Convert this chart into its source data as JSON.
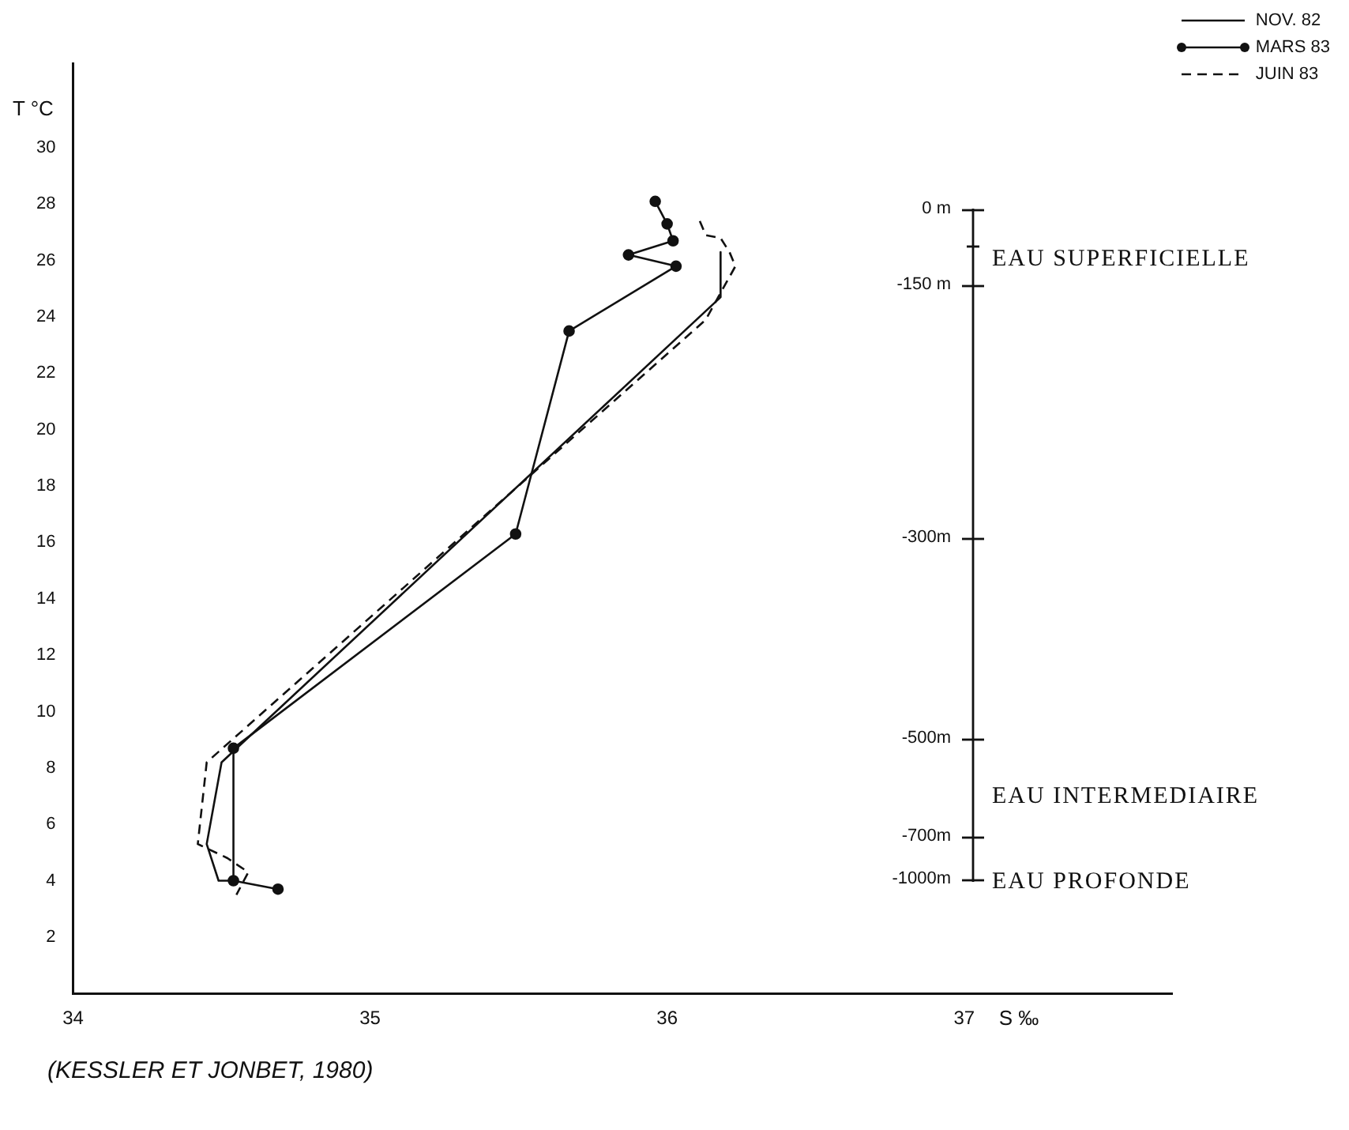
{
  "chart_data": {
    "type": "line",
    "xlabel": "S ‰",
    "ylabel": "T °C",
    "xlim": [
      34,
      37.7
    ],
    "ylim": [
      0,
      33
    ],
    "xticks": [
      34,
      35,
      36,
      37
    ],
    "yticks": [
      2,
      4,
      6,
      8,
      10,
      12,
      14,
      16,
      18,
      20,
      22,
      24,
      26,
      28,
      30
    ],
    "grid": false,
    "legend": "top right",
    "series": [
      {
        "name": "NOV. 82",
        "color": "#111111",
        "line_style": "solid",
        "marker": "none",
        "x": [
          36.18,
          36.18,
          34.5,
          34.45,
          34.49,
          34.55
        ],
        "values": [
          26.3,
          24.7,
          8.2,
          5.3,
          4.0,
          4.0
        ]
      },
      {
        "name": "MARS 83",
        "color": "#111111",
        "line_style": "solid",
        "marker": "circle",
        "x": [
          35.96,
          36.0,
          36.02,
          35.87,
          36.03,
          35.67,
          35.49,
          34.54,
          34.54,
          34.69
        ],
        "values": [
          28.1,
          27.3,
          26.7,
          26.2,
          25.8,
          23.5,
          16.3,
          8.7,
          4.0,
          3.7
        ]
      },
      {
        "name": "JUIN 83",
        "color": "#111111",
        "line_style": "dashed",
        "marker": "none",
        "x": [
          36.11,
          36.13,
          36.18,
          36.21,
          36.23,
          36.13,
          34.45,
          34.42,
          34.52,
          34.59,
          34.55
        ],
        "values": [
          27.4,
          26.9,
          26.8,
          26.3,
          25.8,
          23.9,
          8.2,
          5.3,
          4.8,
          4.3,
          3.5
        ]
      }
    ],
    "annotations": [
      "0 m",
      "EAU SUPERFICIELLE",
      "-150 m",
      "-300m",
      "-500m",
      "EAU INTERMEDIAIRE",
      "-700m",
      "-1000m",
      "EAU PROFONDE",
      "(KESSLER ET JONBET, 1980)"
    ]
  }
}
